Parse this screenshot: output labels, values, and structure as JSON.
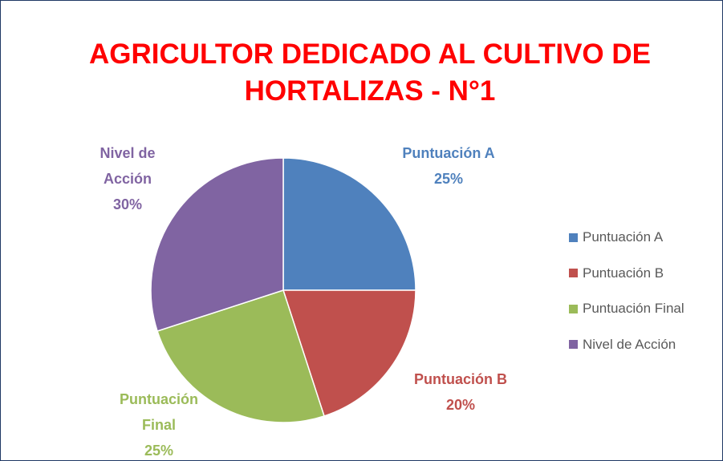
{
  "chart_data": {
    "type": "pie",
    "title": "AGRICULTOR DEDICADO AL CULTIVO DE HORTALIZAS - N°1",
    "categories": [
      "Puntuación A",
      "Puntuación B",
      "Puntuación Final",
      "Nivel de Acción"
    ],
    "values": [
      25,
      20,
      25,
      30
    ],
    "value_labels": [
      "25%",
      "20%",
      "25%",
      "30%"
    ],
    "colors": [
      "#4f81bd",
      "#c0504d",
      "#9bbb59",
      "#8064a2"
    ],
    "legend": "right"
  }
}
